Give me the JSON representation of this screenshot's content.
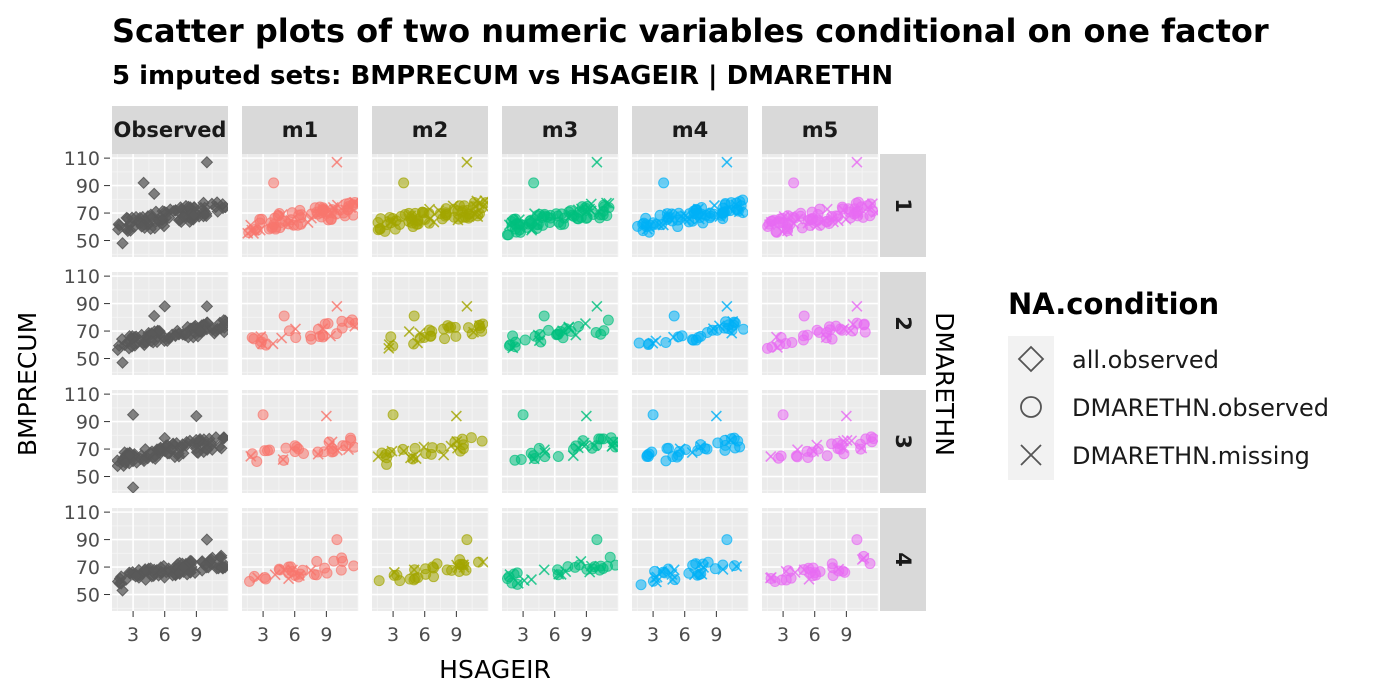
{
  "chart_data": {
    "type": "scatter",
    "title": "Scatter plots of two numeric variables conditional on one factor",
    "subtitle": "5  imputed sets:  BMPRECUM vs HSAGEIR | DMARETHN",
    "xlabel": "HSAGEIR",
    "ylabel": "BMPRECUM",
    "facet_row_label": "DMARETHN",
    "column_facets": [
      "Observed",
      "m1",
      "m2",
      "m3",
      "m4",
      "m5"
    ],
    "row_facets": [
      "1",
      "2",
      "3",
      "4"
    ],
    "x_ticks": [
      3,
      6,
      9
    ],
    "y_ticks": [
      50,
      70,
      90,
      110
    ],
    "xlim": [
      1,
      12
    ],
    "ylim": [
      38,
      113
    ],
    "grid": true,
    "legend_position": "right",
    "legend": {
      "title": "NA.condition",
      "items": [
        {
          "label": "all.observed",
          "shape": "diamond"
        },
        {
          "label": "DMARETHN.observed",
          "shape": "circle"
        },
        {
          "label": "DMARETHN.missing",
          "shape": "cross"
        }
      ]
    },
    "colors": {
      "Observed": "#595959",
      "m1": "#F8766D",
      "m2": "#A3A500",
      "m3": "#00BF7D",
      "m4": "#00B0F6",
      "m5": "#E76BF3"
    },
    "series": [
      {
        "row": "1",
        "trend": [
          [
            1.5,
            60
          ],
          [
            11.5,
            74
          ]
        ],
        "outliers": [
          [
            4,
            92
          ],
          [
            5,
            84
          ],
          [
            10,
            107
          ],
          [
            2,
            48
          ]
        ]
      },
      {
        "row": "2",
        "trend": [
          [
            1.5,
            61
          ],
          [
            11.5,
            74
          ]
        ],
        "outliers": [
          [
            5,
            81
          ],
          [
            6,
            88
          ],
          [
            10,
            88
          ],
          [
            2,
            47
          ]
        ]
      },
      {
        "row": "3",
        "trend": [
          [
            1.5,
            62
          ],
          [
            11.5,
            75
          ]
        ],
        "outliers": [
          [
            3,
            95
          ],
          [
            6,
            78
          ],
          [
            9,
            94
          ],
          [
            3,
            42
          ]
        ]
      },
      {
        "row": "4",
        "trend": [
          [
            1.5,
            60
          ],
          [
            11.5,
            74
          ]
        ],
        "outliers": [
          [
            10,
            90
          ],
          [
            2,
            53
          ],
          [
            5,
            68
          ]
        ]
      }
    ]
  }
}
